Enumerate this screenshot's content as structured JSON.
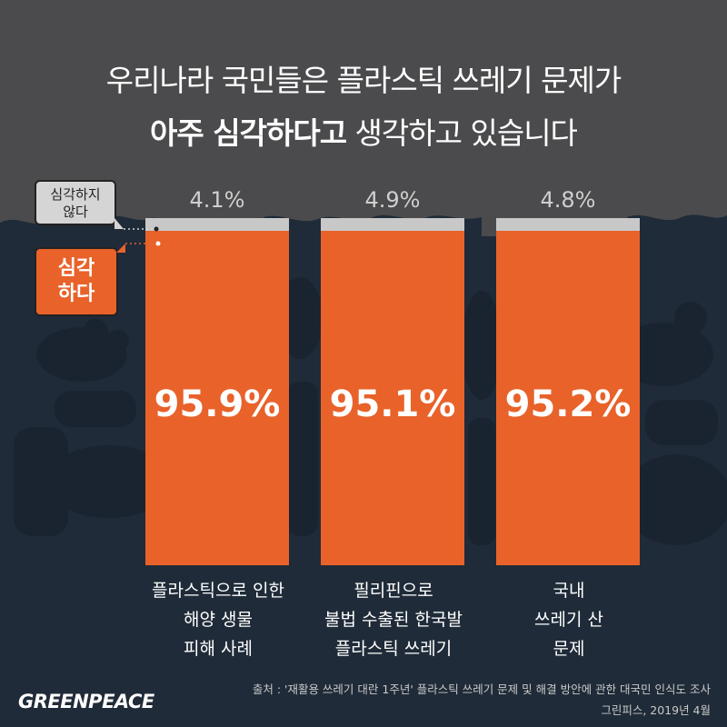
{
  "title": {
    "line1": "우리나라 국민들은 플라스틱 쓰레기 문제가",
    "line2_bold": "아주 심각하다고",
    "line2_rest": " 생각하고 있습니다"
  },
  "legend": {
    "not_serious": [
      "심각하지",
      "않다"
    ],
    "serious": [
      "심각",
      "하다"
    ]
  },
  "colors": {
    "serious": "#e8622a",
    "not_serious": "#c8c8c8",
    "sky": "#4b4b4d",
    "sea": "#1f2b38"
  },
  "chart_data": {
    "type": "bar",
    "stacked": true,
    "title": "우리나라 국민들은 플라스틱 쓰레기 문제가 아주 심각하다고 생각하고 있습니다",
    "categories": [
      [
        "플라스틱으로 인한",
        "해양 생물",
        "피해 사례"
      ],
      [
        "필리핀으로",
        "불법 수출된 한국발",
        "플라스틱 쓰레기"
      ],
      [
        "국내",
        "쓰레기 산",
        "문제"
      ]
    ],
    "series": [
      {
        "name": "심각하다",
        "values": [
          95.9,
          95.1,
          95.2
        ],
        "labels": [
          "95.9%",
          "95.1%",
          "95.2%"
        ]
      },
      {
        "name": "심각하지 않다",
        "values": [
          4.1,
          4.9,
          4.8
        ],
        "labels": [
          "4.1%",
          "4.9%",
          "4.8%"
        ]
      }
    ],
    "ylim": [
      0,
      100
    ],
    "grid": false,
    "legend": "left"
  },
  "footer": {
    "source": "출처 : '재활용 쓰레기 대란 1주년' 플라스틱 쓰레기 문제 및 해결 방안에 관한 대국민 인식도 조사",
    "date": "그린피스, 2019년 4월",
    "logo": "GREENPEACE"
  }
}
